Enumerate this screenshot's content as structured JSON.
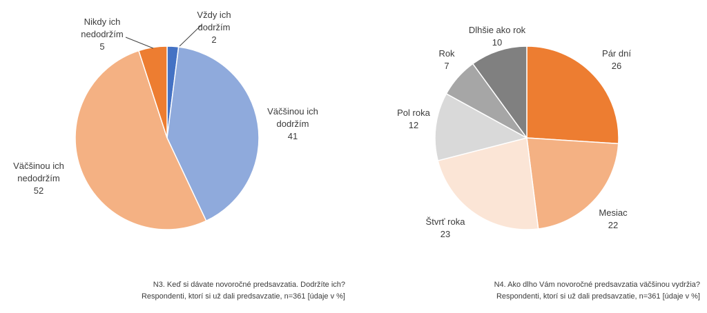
{
  "chart_data": [
    {
      "type": "pie",
      "title": "",
      "slices": [
        {
          "label_lines": [
            "Vždy ich",
            "dodržím"
          ],
          "value": 2,
          "color": "#4472c4"
        },
        {
          "label_lines": [
            "Väčšinou ich",
            "dodržím"
          ],
          "value": 41,
          "color": "#8faadc"
        },
        {
          "label_lines": [
            "Väčšinou ich",
            "nedodržím"
          ],
          "value": 52,
          "color": "#f4b183"
        },
        {
          "label_lines": [
            "Nikdy ich",
            "nedodržím"
          ],
          "value": 5,
          "color": "#ed7d31"
        }
      ],
      "caption": [
        "N3. Keď si dávate novoročné predsavzatia. Dodržíte ich?",
        "Respondenti, ktorí si už dali predsavzatie, n=361 [údaje v %]"
      ]
    },
    {
      "type": "pie",
      "title": "",
      "slices": [
        {
          "label_lines": [
            "Pár dní"
          ],
          "value": 26,
          "color": "#ed7d31"
        },
        {
          "label_lines": [
            "Mesiac"
          ],
          "value": 22,
          "color": "#f4b183"
        },
        {
          "label_lines": [
            "Štvrť roka"
          ],
          "value": 23,
          "color": "#fbe5d6"
        },
        {
          "label_lines": [
            "Pol roka"
          ],
          "value": 12,
          "color": "#d9d9d9"
        },
        {
          "label_lines": [
            "Rok"
          ],
          "value": 7,
          "color": "#a6a6a6"
        },
        {
          "label_lines": [
            "Dlhšie ako rok"
          ],
          "value": 10,
          "color": "#808080"
        }
      ],
      "caption": [
        "N4. Ako dlho Vám novoročné predsavzatia väčšinou vydržia?",
        "Respondenti, ktorí si už dali predsavzatie, n=361 [údaje v %]"
      ]
    }
  ]
}
